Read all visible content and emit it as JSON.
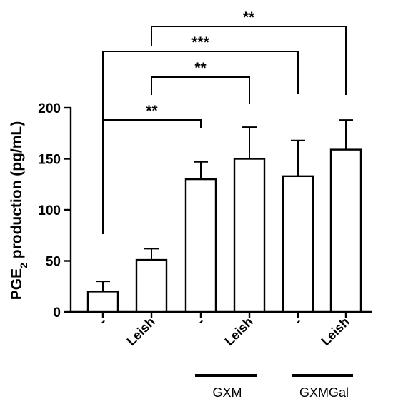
{
  "chart_data": {
    "type": "bar",
    "ylabel_prefix": "PGE",
    "ylabel_subscript": "2",
    "ylabel_suffix": " production (pg/mL)",
    "ylim": [
      0,
      200
    ],
    "yticks": [
      0,
      50,
      100,
      150,
      200
    ],
    "categories": [
      "-",
      "Leish",
      "-",
      "Leish",
      "-",
      "Leish"
    ],
    "values": [
      20,
      51,
      130,
      150,
      133,
      159
    ],
    "errors": [
      10,
      11,
      17,
      31,
      35,
      29
    ],
    "bar_fill": "#ffffff",
    "bar_stroke": "#000000",
    "groups": [
      {
        "label": "GXM",
        "from": 2,
        "to": 3
      },
      {
        "label": "GXMGal",
        "from": 4,
        "to": 5
      }
    ],
    "significance": [
      {
        "from": 1,
        "to": 5,
        "label": "**"
      },
      {
        "from": 0,
        "to": 4,
        "label": "***"
      },
      {
        "from": 1,
        "to": 3,
        "label": "**"
      },
      {
        "from": 0,
        "to": 2,
        "label": "**"
      }
    ]
  }
}
